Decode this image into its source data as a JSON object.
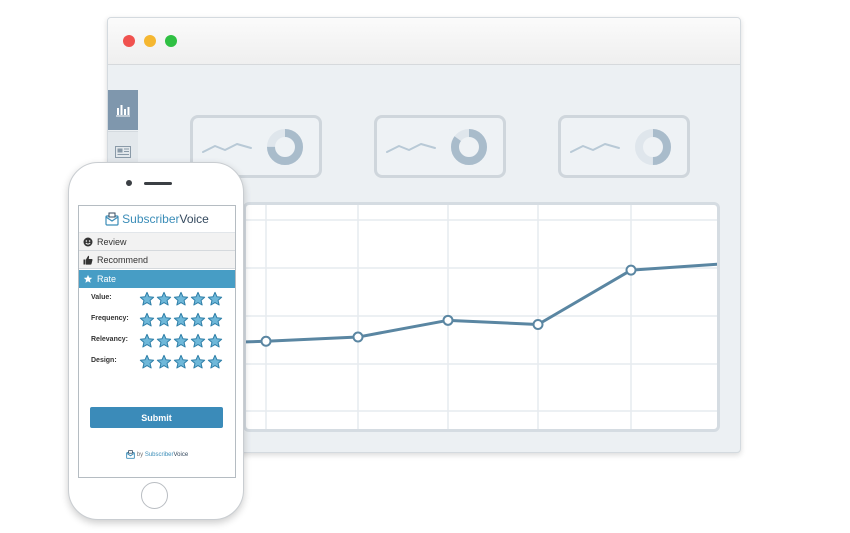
{
  "browser": {
    "controls": [
      "close",
      "minimize",
      "maximize"
    ],
    "sidebar": [
      {
        "icon": "bar-chart-icon",
        "active": true
      },
      {
        "icon": "newspaper-icon",
        "active": false
      }
    ],
    "cards": [
      {
        "icon": "sparkline-icon",
        "donut_fraction": 0.75
      },
      {
        "icon": "sparkline-icon",
        "donut_fraction": 0.85
      },
      {
        "icon": "sparkline-icon",
        "donut_fraction": 0.5
      }
    ],
    "chart": {
      "type": "line",
      "points": [
        0.42,
        0.44,
        0.52,
        0.5,
        0.76,
        0.79
      ],
      "line_color": "#5a86a2"
    }
  },
  "phone": {
    "brand": {
      "part1": "Subscriber",
      "part2": "Voice"
    },
    "sections": [
      {
        "label": "Review",
        "icon": "smiley-icon"
      },
      {
        "label": "Recommend",
        "icon": "thumbs-up-icon"
      },
      {
        "label": "Rate",
        "icon": "star-icon"
      }
    ],
    "ratings": [
      {
        "label": "Value:",
        "stars": 5
      },
      {
        "label": "Frequency:",
        "stars": 5
      },
      {
        "label": "Relevancy:",
        "stars": 5
      },
      {
        "label": "Design:",
        "stars": 5
      }
    ],
    "submit_label": "Submit",
    "footer": {
      "by": "by ",
      "part1": "Subscriber",
      "part2": "Voice"
    }
  },
  "colors": {
    "accent": "#479dc5",
    "button": "#3b8bb9",
    "star_fill": "#6fb8d9",
    "star_stroke": "#2f7fa8"
  }
}
